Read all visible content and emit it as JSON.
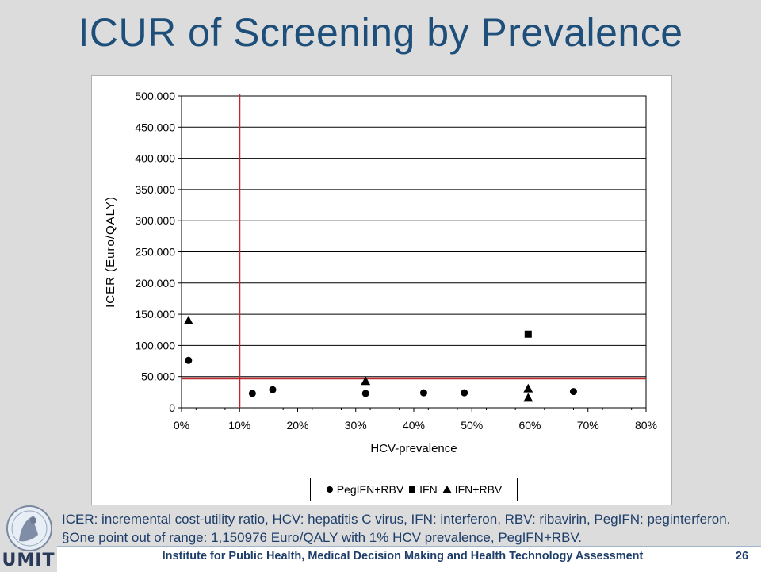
{
  "slide": {
    "title": "ICUR of Screening by Prevalence",
    "footnote": "ICER: incremental cost-utility ratio, HCV: hepatitis C virus, IFN: interferon, RBV: ribavirin, PegIFN: peginterferon. §One point out of range: 1,150976 Euro/QALY with 1% HCV prevalence, PegIFN+RBV.",
    "footer": "Institute for Public Health, Medical Decision Making and Health Technology Assessment",
    "page_number": "26",
    "logo_text": "UMIT"
  },
  "colors": {
    "title": "#1e4f7a",
    "reference_lines": "#c0262c",
    "markers": "#000000"
  },
  "chart_data": {
    "type": "scatter",
    "title": "",
    "xlabel": "HCV-prevalence",
    "ylabel": "ICER (Euro/QALY)",
    "xlim": [
      0,
      0.8
    ],
    "ylim": [
      0,
      500000
    ],
    "x_ticks": [
      0,
      0.1,
      0.2,
      0.3,
      0.4,
      0.5,
      0.6,
      0.7,
      0.8
    ],
    "x_tick_labels": [
      "0%",
      "10%",
      "20%",
      "30%",
      "40%",
      "50%",
      "60%",
      "70%",
      "80%"
    ],
    "y_ticks": [
      0,
      50000,
      100000,
      150000,
      200000,
      250000,
      300000,
      350000,
      400000,
      450000,
      500000
    ],
    "y_tick_labels": [
      "0",
      "50.000",
      "100.000",
      "150.000",
      "200.000",
      "250.000",
      "300.000",
      "350.000",
      "400.000",
      "450.000",
      "500.000"
    ],
    "grid": "horizontal",
    "legend_position": "bottom",
    "reference_lines": [
      {
        "orientation": "vertical",
        "x": 0.1
      },
      {
        "orientation": "horizontal",
        "y": 47000
      }
    ],
    "series": [
      {
        "name": "PegIFN+RBV",
        "marker": "circle",
        "points": [
          {
            "x": 0.012,
            "y": 76000
          },
          {
            "x": 0.122,
            "y": 23000
          },
          {
            "x": 0.157,
            "y": 29000
          },
          {
            "x": 0.317,
            "y": 23000
          },
          {
            "x": 0.417,
            "y": 24000
          },
          {
            "x": 0.487,
            "y": 24000
          },
          {
            "x": 0.675,
            "y": 26000
          }
        ]
      },
      {
        "name": "IFN",
        "marker": "square",
        "points": [
          {
            "x": 0.597,
            "y": 118000
          }
        ]
      },
      {
        "name": "IFN+RBV",
        "marker": "triangle",
        "points": [
          {
            "x": 0.012,
            "y": 140000
          },
          {
            "x": 0.317,
            "y": 43000
          },
          {
            "x": 0.597,
            "y": 31000
          },
          {
            "x": 0.597,
            "y": 16000
          }
        ]
      }
    ]
  }
}
